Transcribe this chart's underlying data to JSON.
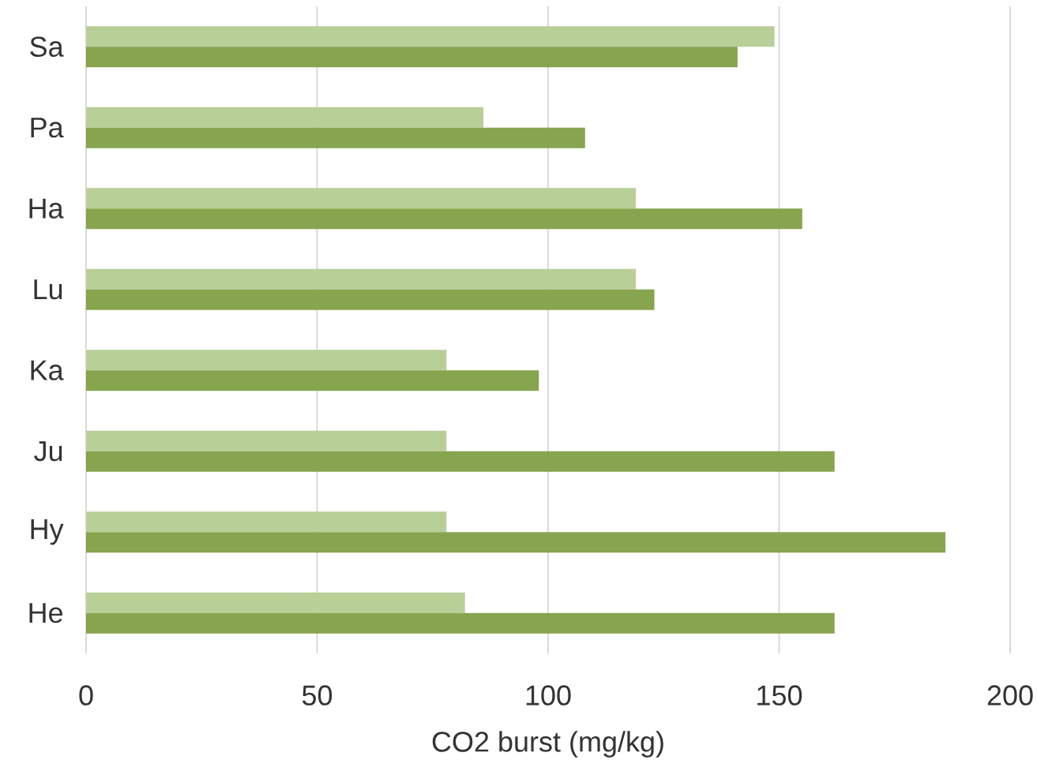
{
  "chart_data": {
    "type": "bar",
    "orientation": "horizontal",
    "categories": [
      "Sa",
      "Pa",
      "Ha",
      "Lu",
      "Ka",
      "Ju",
      "Hy",
      "He"
    ],
    "series": [
      {
        "color": "#b8cf98",
        "values": [
          149,
          86,
          119,
          119,
          78,
          78,
          78,
          82
        ]
      },
      {
        "color": "#87a44e",
        "values": [
          141,
          108,
          155,
          123,
          98,
          162,
          186,
          162
        ]
      }
    ],
    "xlim": [
      0,
      200
    ],
    "xticks": [
      0,
      50,
      100,
      150,
      200
    ],
    "xlabel": "CO2 burst (mg/kg)",
    "grid": "x"
  }
}
